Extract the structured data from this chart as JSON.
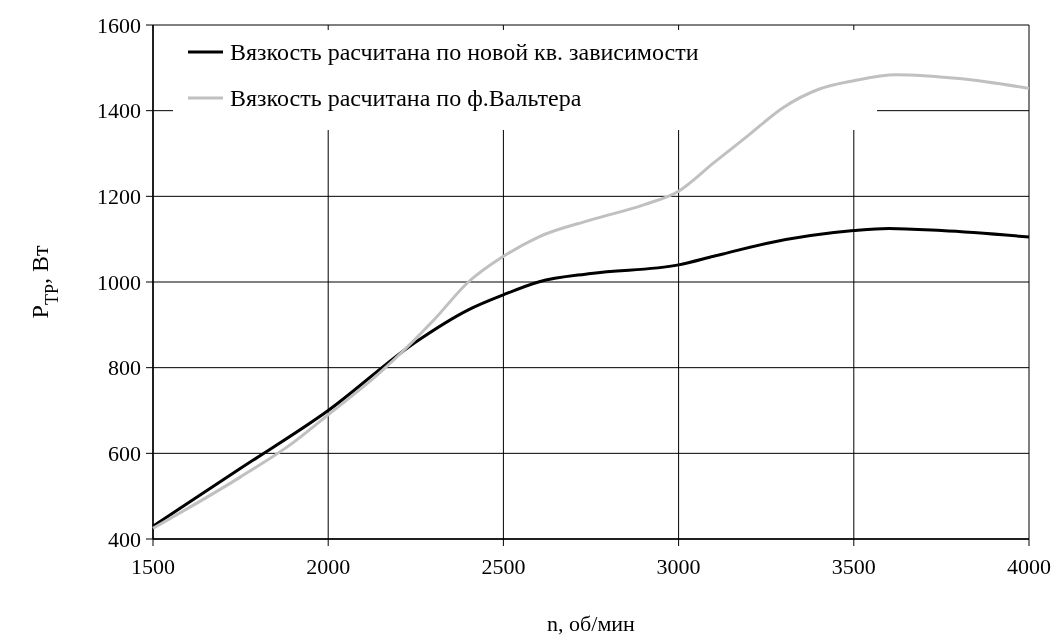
{
  "chart_data": {
    "type": "line",
    "xlabel": "n, об/мин",
    "ylabel": "P$_{TP}$, Вт",
    "xlim": [
      1500,
      4000
    ],
    "xticks": [
      1500,
      2000,
      2500,
      3000,
      3500,
      4000
    ],
    "ylim": [
      400,
      1600
    ],
    "yticks": [
      400,
      600,
      800,
      1000,
      1200,
      1400,
      1600
    ],
    "grid": true,
    "legend": "top left",
    "line_style": "solid",
    "marker": "none",
    "series": [
      {
        "name": "Вязкость расчитана по новой кв. зависимости",
        "color": "#000000",
        "x": [
          1500,
          1750,
          2000,
          2250,
          2400,
          2500,
          2600,
          2750,
          3000,
          3100,
          3250,
          3500,
          3600,
          3750,
          4000
        ],
        "values": [
          430,
          565,
          700,
          860,
          935,
          970,
          1000,
          1020,
          1040,
          1060,
          1090,
          1120,
          1125,
          1120,
          1105
        ]
      },
      {
        "name": "Вязкость расчитана по ф.Вальтера",
        "color": "#c0c0c0",
        "x": [
          1500,
          1750,
          1900,
          2000,
          2150,
          2300,
          2400,
          2500,
          2600,
          2750,
          2900,
          3000,
          3100,
          3200,
          3300,
          3400,
          3500,
          3620,
          3800,
          4000
        ],
        "values": [
          425,
          545,
          625,
          690,
          790,
          910,
          1000,
          1060,
          1105,
          1145,
          1180,
          1212,
          1278,
          1343,
          1408,
          1450,
          1470,
          1484,
          1475,
          1452
        ]
      }
    ]
  }
}
